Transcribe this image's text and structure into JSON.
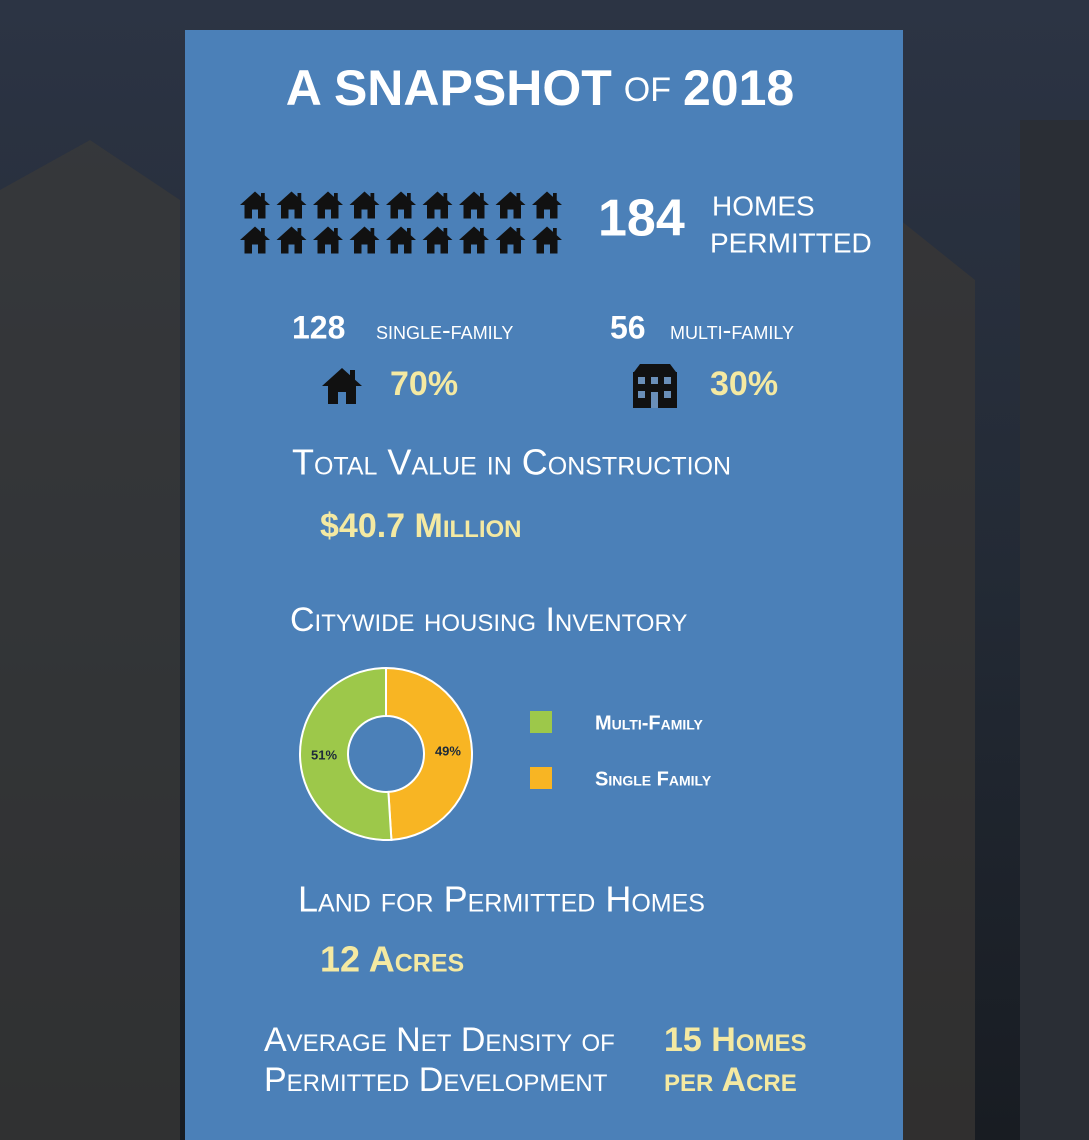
{
  "title": {
    "main": "A SNAPSHOT",
    "of": "OF",
    "year": "2018"
  },
  "homes": {
    "count": "184",
    "label_1": "HOMES",
    "label_2": "PERMITTED"
  },
  "single": {
    "count": "128",
    "label": "single-family",
    "share": "70%"
  },
  "multi": {
    "count": "56",
    "label": "multi-family",
    "share": "30%"
  },
  "value": {
    "heading": "Total Value in Construction",
    "amount": "$40.7 Million"
  },
  "inventory": {
    "heading": "Citywide housing Inventory"
  },
  "chart_data": {
    "type": "pie",
    "categories": [
      "Multi-Family",
      "Single Family"
    ],
    "values": [
      51,
      49
    ],
    "value_labels": [
      "51%",
      "49%"
    ],
    "colors": [
      "#9dc84a",
      "#f8b523"
    ]
  },
  "land": {
    "heading": "Land for Permitted Homes",
    "amount": "12 Acres"
  },
  "density": {
    "label_1": "Average Net Density of",
    "label_2": "Permitted Development",
    "value_1": "15 Homes",
    "value_2": "per Acre"
  }
}
